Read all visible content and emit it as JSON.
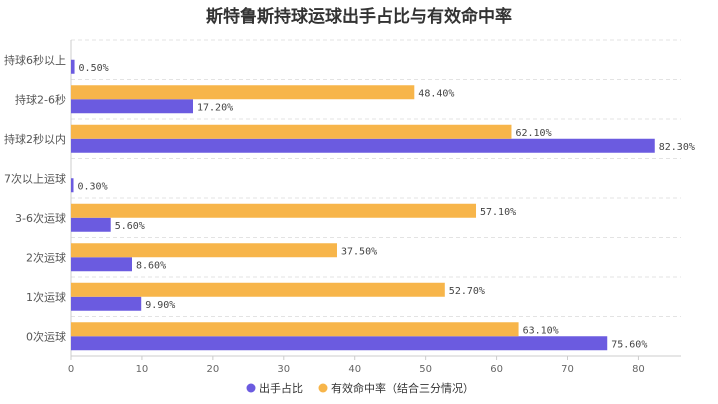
{
  "chart_data": {
    "type": "bar",
    "orientation": "horizontal",
    "title": "斯特鲁斯持球运球出手占比与有效命中率",
    "categories": [
      "持球6秒以上",
      "持球2-6秒",
      "持球2秒以内",
      "7次以上运球",
      "3-6次运球",
      "2次运球",
      "1次运球",
      "0次运球"
    ],
    "series": [
      {
        "name": "出手占比",
        "color": "#6b5be0",
        "values": [
          0.5,
          17.2,
          82.3,
          0.3,
          5.6,
          8.6,
          9.9,
          75.6
        ],
        "labels": [
          "0.50%",
          "17.20%",
          "82.30%",
          "0.30%",
          "5.60%",
          "8.60%",
          "9.90%",
          "75.60%"
        ]
      },
      {
        "name": "有效命中率（结合三分情况）",
        "color": "#f7b54a",
        "values": [
          null,
          48.4,
          62.1,
          null,
          57.1,
          37.5,
          52.7,
          63.1
        ],
        "labels": [
          null,
          "48.40%",
          "62.10%",
          null,
          "57.10%",
          "37.50%",
          "52.70%",
          "63.10%"
        ]
      }
    ],
    "xlim": [
      0,
      86
    ],
    "xticks": [
      "0",
      "10",
      "20",
      "30",
      "40",
      "50",
      "60",
      "70",
      "80"
    ],
    "legend_position": "bottom",
    "grid": "horizontal dashed"
  }
}
